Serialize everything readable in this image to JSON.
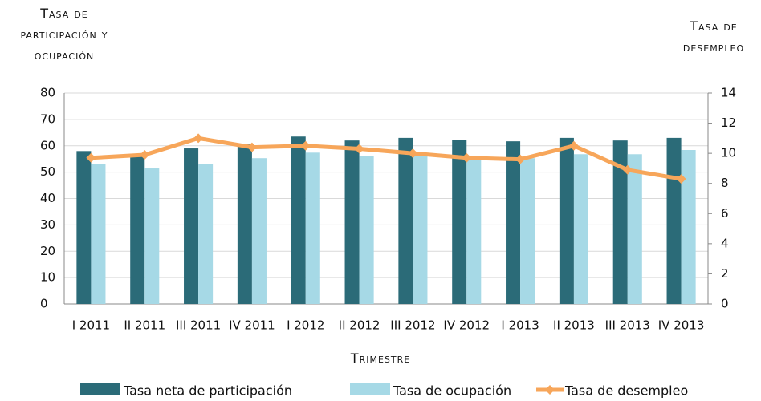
{
  "chart_data": {
    "type": "bar_line",
    "y_label": "Tasa de participación y ocupación",
    "y2_label": "Tasa de desempleo",
    "x_label": "Trimestre",
    "categories": [
      "I 2011",
      "II 2011",
      "III 2011",
      "IV 2011",
      "I 2012",
      "II 2012",
      "III 2012",
      "IV 2012",
      "I 2013",
      "II 2013",
      "III 2013",
      "IV 2013"
    ],
    "series": [
      {
        "name": "Tasa neta de participación",
        "color": "#2b6b78",
        "type": "bar",
        "values": [
          58,
          56,
          59,
          60.5,
          63.5,
          62,
          63,
          62.3,
          61.7,
          63,
          62,
          63
        ]
      },
      {
        "name": "Tasa de ocupación",
        "color": "#a6d9e6",
        "type": "bar",
        "values": [
          53,
          51.4,
          53,
          55.3,
          57.4,
          56.2,
          57,
          56,
          55.3,
          56.8,
          56.8,
          58.4
        ]
      },
      {
        "name": "Tasa de desempleo",
        "color": "#f7a65a",
        "type": "line",
        "axis": "y2",
        "values": [
          9.7,
          9.9,
          11.0,
          10.4,
          10.5,
          10.3,
          10.0,
          9.7,
          9.6,
          10.5,
          8.9,
          8.3
        ]
      }
    ],
    "ylim": [
      0,
      80
    ],
    "yticks": [
      0,
      10,
      20,
      30,
      40,
      50,
      60,
      70,
      80
    ],
    "y2lim": [
      0,
      14
    ],
    "y2ticks": [
      0,
      2,
      4,
      6,
      8,
      10,
      12,
      14
    ],
    "grid": true
  }
}
